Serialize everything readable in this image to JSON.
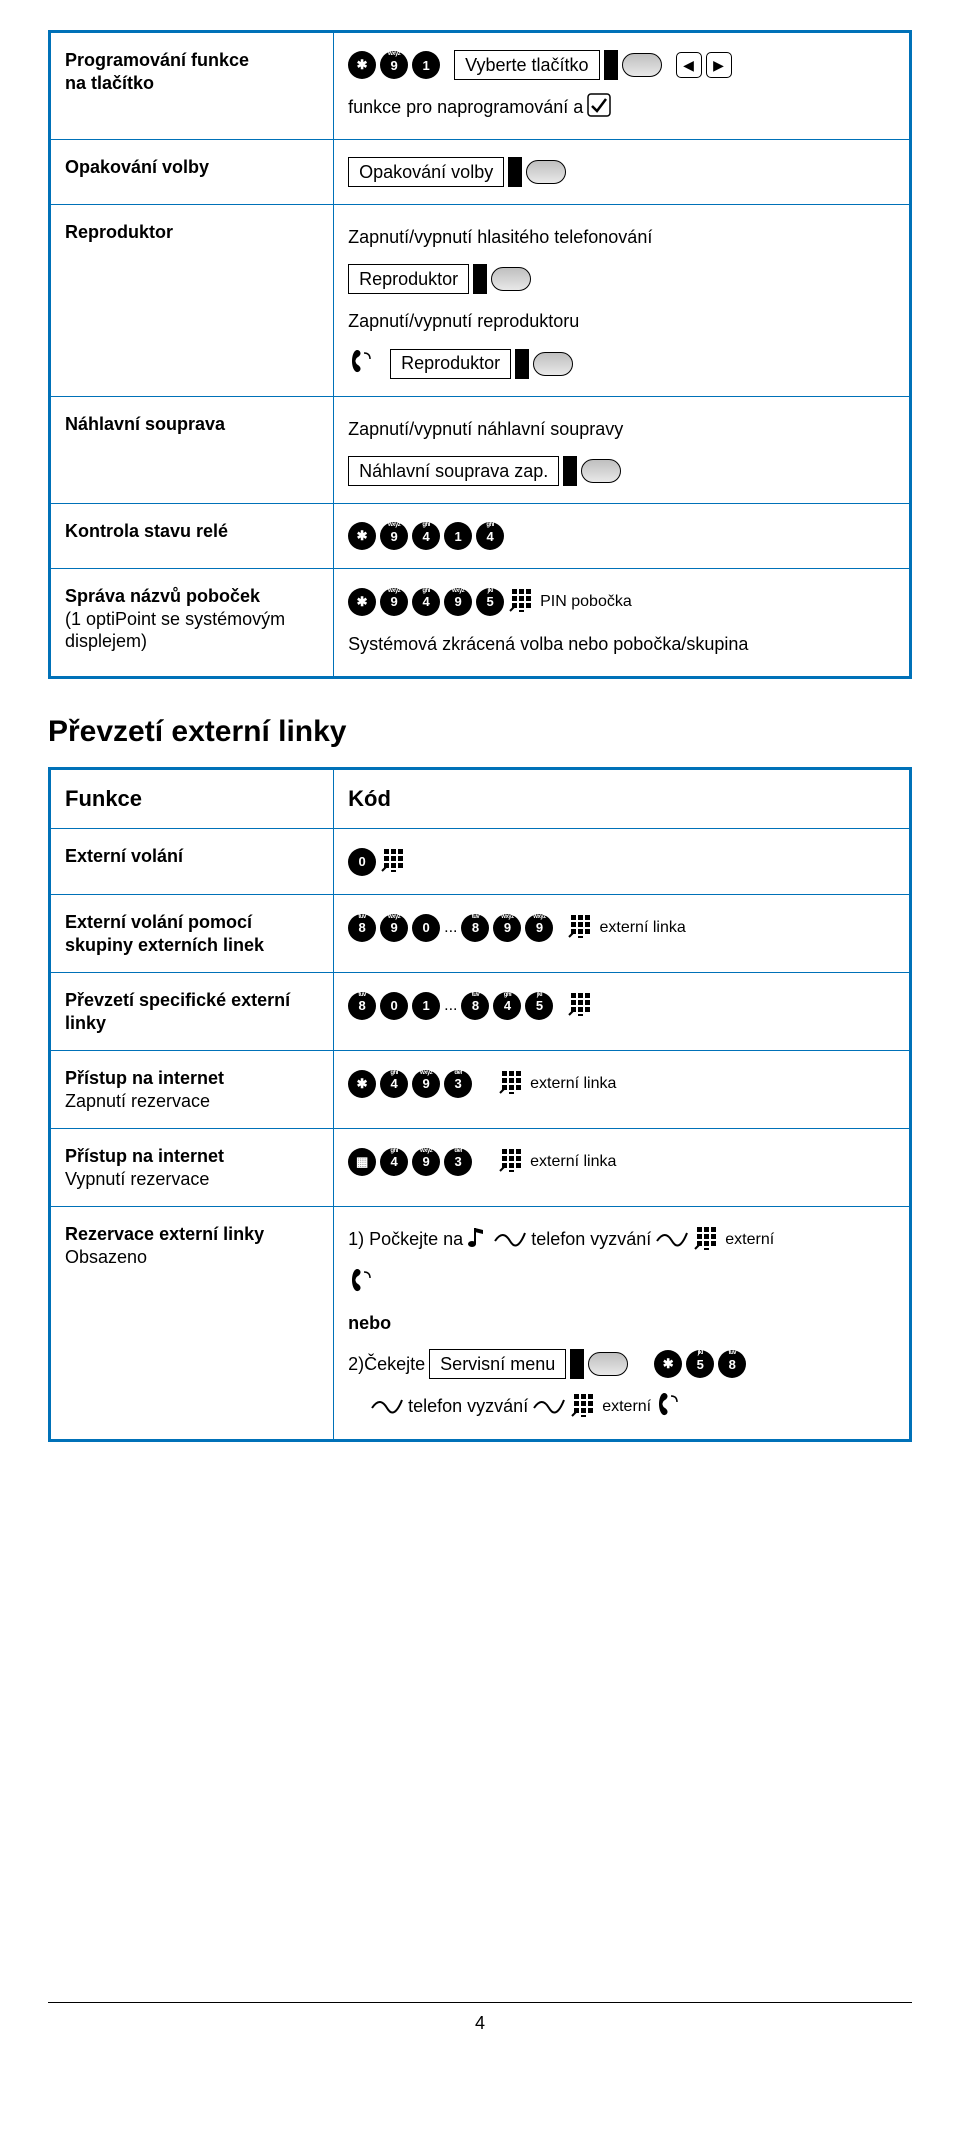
{
  "table1": {
    "rows": [
      {
        "label": "Programování funkce\nna tlačítko",
        "lines": [
          {
            "parts": [
              {
                "t": "key",
                "v": "*"
              },
              {
                "t": "key",
                "v": "9",
                "sup": "wxyz"
              },
              {
                "t": "key",
                "v": "1"
              },
              {
                "t": "gap"
              },
              {
                "t": "disp",
                "v": "Vyberte tlačítko"
              },
              {
                "t": "flag"
              },
              {
                "t": "oval"
              },
              {
                "t": "gap"
              },
              {
                "t": "arrowL"
              },
              {
                "t": "arrowR"
              }
            ]
          },
          {
            "parts": [
              {
                "t": "txt",
                "v": "funkce pro naprogramování a "
              },
              {
                "t": "check"
              }
            ]
          }
        ]
      },
      {
        "label": "Opakování volby",
        "lines": [
          {
            "parts": [
              {
                "t": "disp",
                "v": "Opakování volby"
              },
              {
                "t": "flag"
              },
              {
                "t": "oval"
              }
            ]
          }
        ]
      },
      {
        "label": "Reproduktor",
        "lines": [
          {
            "parts": [
              {
                "t": "txt",
                "v": "Zapnutí/vypnutí hlasitého telefonování"
              }
            ]
          },
          {
            "parts": [
              {
                "t": "disp",
                "v": "Reproduktor"
              },
              {
                "t": "flag"
              },
              {
                "t": "oval"
              }
            ]
          },
          {
            "parts": [
              {
                "t": "txt",
                "v": "Zapnutí/vypnutí reproduktoru"
              }
            ]
          },
          {
            "parts": [
              {
                "t": "handset"
              },
              {
                "t": "gap"
              },
              {
                "t": "disp",
                "v": "Reproduktor"
              },
              {
                "t": "flag"
              },
              {
                "t": "oval"
              }
            ]
          }
        ]
      },
      {
        "label": "Náhlavní souprava",
        "lines": [
          {
            "parts": [
              {
                "t": "txt",
                "v": "Zapnutí/vypnutí náhlavní soupravy"
              }
            ]
          },
          {
            "parts": [
              {
                "t": "disp",
                "v": "Náhlavní souprava zap."
              },
              {
                "t": "flag"
              },
              {
                "t": "oval"
              }
            ]
          }
        ]
      },
      {
        "label": "Kontrola stavu relé",
        "lines": [
          {
            "parts": [
              {
                "t": "key",
                "v": "*"
              },
              {
                "t": "key",
                "v": "9",
                "sup": "wxyz"
              },
              {
                "t": "key",
                "v": "4",
                "sup": "ghi"
              },
              {
                "t": "key",
                "v": "1"
              },
              {
                "t": "key",
                "v": "4",
                "sup": "ghi"
              }
            ]
          }
        ]
      },
      {
        "label": "Správa názvů poboček",
        "sub": "(1 optiPoint se systémovým displejem)",
        "lines": [
          {
            "parts": [
              {
                "t": "key",
                "v": "*"
              },
              {
                "t": "key",
                "v": "9",
                "sup": "wxyz"
              },
              {
                "t": "key",
                "v": "4",
                "sup": "ghi"
              },
              {
                "t": "key",
                "v": "9",
                "sup": "wxyz"
              },
              {
                "t": "key",
                "v": "5",
                "sup": "jkl"
              },
              {
                "t": "keypad"
              },
              {
                "t": "txtsm",
                "v": " PIN pobočka"
              }
            ]
          },
          {
            "parts": [
              {
                "t": "txt",
                "v": "Systémová zkrácená volba nebo pobočka/skupina"
              }
            ]
          }
        ]
      }
    ]
  },
  "section2": {
    "title": "Převzetí externí linky",
    "header_l": "Funkce",
    "header_r": "Kód",
    "rows": [
      {
        "label": "Externí volání",
        "lines": [
          {
            "parts": [
              {
                "t": "key",
                "v": "0"
              },
              {
                "t": "keypad"
              }
            ]
          }
        ]
      },
      {
        "label": "Externí volání pomocí skupiny externích linek",
        "lines": [
          {
            "parts": [
              {
                "t": "key",
                "v": "8",
                "sup": "tuv"
              },
              {
                "t": "key",
                "v": "9",
                "sup": "wxyz"
              },
              {
                "t": "key",
                "v": "0"
              },
              {
                "t": "txtsm",
                "v": "..."
              },
              {
                "t": "key",
                "v": "8",
                "sup": "tuv"
              },
              {
                "t": "key",
                "v": "9",
                "sup": "wxyz"
              },
              {
                "t": "key",
                "v": "9",
                "sup": "wxyz"
              },
              {
                "t": "gap"
              },
              {
                "t": "keypad"
              },
              {
                "t": "txtsm",
                "v": " externí linka"
              }
            ]
          }
        ]
      },
      {
        "label": "Převzetí specifické externí linky",
        "lines": [
          {
            "parts": [
              {
                "t": "key",
                "v": "8",
                "sup": "tuv"
              },
              {
                "t": "key",
                "v": "0"
              },
              {
                "t": "key",
                "v": "1"
              },
              {
                "t": "txtsm",
                "v": "..."
              },
              {
                "t": "key",
                "v": "8",
                "sup": "tuv"
              },
              {
                "t": "key",
                "v": "4",
                "sup": "ghi"
              },
              {
                "t": "key",
                "v": "5",
                "sup": "jkl"
              },
              {
                "t": "gap"
              },
              {
                "t": "keypad"
              }
            ]
          }
        ]
      },
      {
        "label": "Přístup na internet",
        "sub": "Zapnutí rezervace",
        "lines": [
          {
            "parts": [
              {
                "t": "key",
                "v": "*"
              },
              {
                "t": "key",
                "v": "4",
                "sup": "ghi"
              },
              {
                "t": "key",
                "v": "9",
                "sup": "wxyz"
              },
              {
                "t": "key",
                "v": "3",
                "sup": "def"
              },
              {
                "t": "gapL"
              },
              {
                "t": "keypad"
              },
              {
                "t": "txtsm",
                "v": " externí linka"
              }
            ]
          }
        ]
      },
      {
        "label": "Přístup na internet",
        "sub": "Vypnutí rezervace",
        "lines": [
          {
            "parts": [
              {
                "t": "key",
                "v": "#"
              },
              {
                "t": "key",
                "v": "4",
                "sup": "ghi"
              },
              {
                "t": "key",
                "v": "9",
                "sup": "wxyz"
              },
              {
                "t": "key",
                "v": "3",
                "sup": "def"
              },
              {
                "t": "gapL"
              },
              {
                "t": "keypad"
              },
              {
                "t": "txtsm",
                "v": " externí linka"
              }
            ]
          }
        ]
      },
      {
        "label": "Rezervace externí linky",
        "sub": "Obsazeno",
        "lines": [
          {
            "parts": [
              {
                "t": "txt",
                "v": "1) Počkejte na "
              },
              {
                "t": "note"
              },
              {
                "t": "wave"
              },
              {
                "t": "txt",
                "v": " telefon vyzvání "
              },
              {
                "t": "wave2"
              },
              {
                "t": "keypad"
              },
              {
                "t": "txtsm",
                "v": " externí"
              }
            ]
          },
          {
            "parts": [
              {
                "t": "handset"
              }
            ]
          },
          {
            "nebo": true,
            "v": "nebo"
          },
          {
            "parts": [
              {
                "t": "txt",
                "v": "2)Čekejte "
              },
              {
                "t": "disp",
                "v": "Servisní menu"
              },
              {
                "t": "flag"
              },
              {
                "t": "oval"
              },
              {
                "t": "gapL"
              },
              {
                "t": "key",
                "v": "*"
              },
              {
                "t": "key",
                "v": "5",
                "sup": "jkl"
              },
              {
                "t": "key",
                "v": "8",
                "sup": "tuv"
              }
            ]
          },
          {
            "parts": [
              {
                "t": "gapL"
              },
              {
                "t": "wave"
              },
              {
                "t": "txt",
                "v": " telefon vyzvání "
              },
              {
                "t": "wave2"
              },
              {
                "t": "keypad"
              },
              {
                "t": "txtsm",
                "v": " externí "
              },
              {
                "t": "handset"
              }
            ]
          }
        ]
      }
    ]
  },
  "page_number": "4"
}
